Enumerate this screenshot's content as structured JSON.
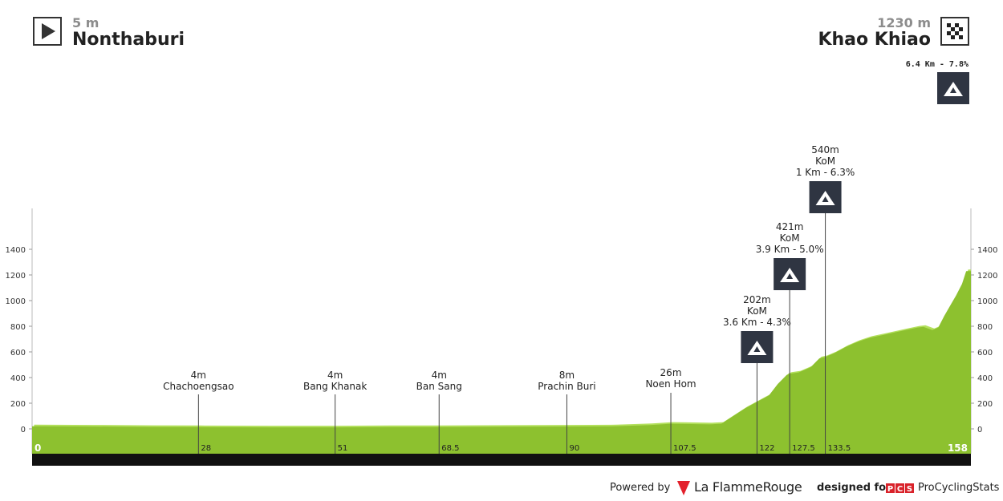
{
  "header": {
    "start": {
      "elevation": "5 m",
      "city": "Nonthaburi",
      "icon": "play-icon"
    },
    "finish": {
      "elevation": "1230 m",
      "city": "Khao Khiao",
      "icon": "checkered-flag-icon"
    },
    "final_climb": {
      "label": "6.4 Km - 7.8%",
      "icon": "mountain-icon"
    }
  },
  "footer": {
    "powered_by": "Powered by",
    "brand": "La FlammeRouge",
    "designed_for": "designed for",
    "pcs_badge": "PCS",
    "pcs_name": "ProCyclingStats"
  },
  "colors": {
    "profile_dark": "#8dc12f",
    "profile_light": "#b3e05c",
    "axis_bar": "#111111",
    "icon_bg": "#2f3542"
  },
  "chart_data": {
    "type": "area",
    "xlim": [
      0,
      158
    ],
    "ylim": [
      -150,
      1650
    ],
    "yticks": [
      0,
      200,
      400,
      600,
      800,
      1000,
      1200,
      1400
    ],
    "x_start_label": "0",
    "x_end_label": "158",
    "profile": [
      [
        0,
        20
      ],
      [
        10,
        18
      ],
      [
        20,
        15
      ],
      [
        28,
        14
      ],
      [
        40,
        12
      ],
      [
        51,
        12
      ],
      [
        60,
        14
      ],
      [
        68.5,
        14
      ],
      [
        80,
        16
      ],
      [
        90,
        18
      ],
      [
        98,
        20
      ],
      [
        104,
        30
      ],
      [
        107.5,
        40
      ],
      [
        110,
        38
      ],
      [
        114,
        35
      ],
      [
        116,
        40
      ],
      [
        118,
        100
      ],
      [
        120,
        160
      ],
      [
        122,
        210
      ],
      [
        124,
        260
      ],
      [
        125.5,
        350
      ],
      [
        127,
        420
      ],
      [
        127.5,
        430
      ],
      [
        129,
        440
      ],
      [
        131,
        480
      ],
      [
        132.5,
        550
      ],
      [
        133.5,
        560
      ],
      [
        135,
        590
      ],
      [
        137,
        640
      ],
      [
        139,
        680
      ],
      [
        141,
        710
      ],
      [
        143,
        730
      ],
      [
        145,
        750
      ],
      [
        147,
        770
      ],
      [
        149,
        790
      ],
      [
        150,
        795
      ],
      [
        151.5,
        770
      ],
      [
        152.5,
        790
      ],
      [
        153.5,
        880
      ],
      [
        154.5,
        960
      ],
      [
        155.5,
        1040
      ],
      [
        156.5,
        1130
      ],
      [
        157.2,
        1230
      ],
      [
        158,
        1230
      ]
    ],
    "points": [
      {
        "km": 28,
        "label": "28",
        "name": "Chachoengsao",
        "elevation": "4m"
      },
      {
        "km": 51,
        "label": "51",
        "name": "Bang Khanak",
        "elevation": "4m"
      },
      {
        "km": 68.5,
        "label": "68.5",
        "name": "Ban Sang",
        "elevation": "4m"
      },
      {
        "km": 90,
        "label": "90",
        "name": "Prachin Buri",
        "elevation": "8m"
      },
      {
        "km": 107.5,
        "label": "107.5",
        "name": "Noen Hom",
        "elevation": "26m"
      }
    ],
    "climbs": [
      {
        "km": 122,
        "label": "122",
        "elevation": "202m",
        "type": "KoM",
        "stats": "3.6 Km - 4.3%",
        "icon": "mountain-icon"
      },
      {
        "km": 127.5,
        "label": "127.5",
        "elevation": "421m",
        "type": "KoM",
        "stats": "3.9 Km - 5.0%",
        "icon": "mountain-icon"
      },
      {
        "km": 133.5,
        "label": "133.5",
        "elevation": "540m",
        "type": "KoM",
        "stats": "1 Km - 6.3%",
        "icon": "mountain-icon"
      }
    ]
  }
}
